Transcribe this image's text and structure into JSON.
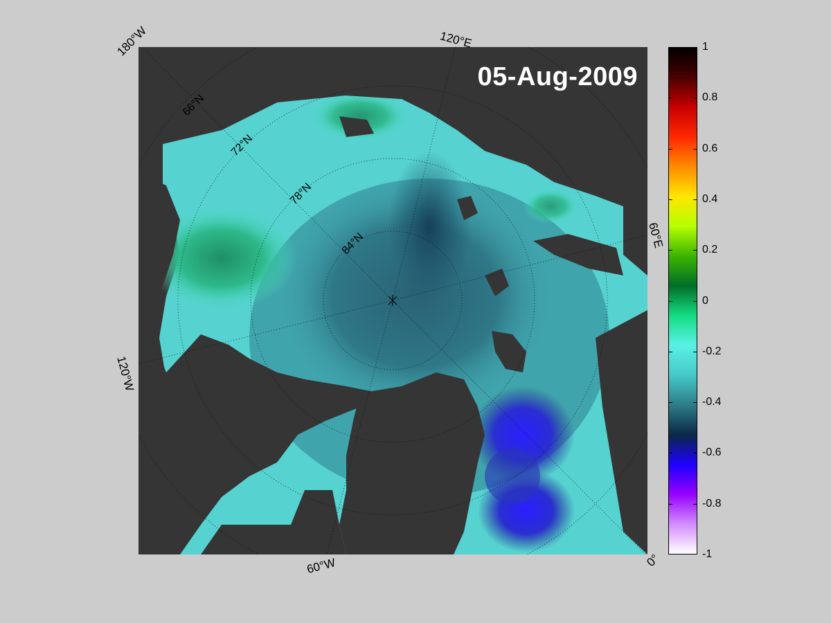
{
  "map": {
    "date": "05-Aug-2009",
    "longitude_labels": [
      "180°W",
      "120°E",
      "60°E",
      "0°",
      "60°W",
      "120°W"
    ],
    "latitude_labels": [
      "66°N",
      "72°N",
      "78°N",
      "84°N"
    ]
  },
  "colorbar": {
    "ticks": [
      "1",
      "0.8",
      "0.6",
      "0.4",
      "0.2",
      "0",
      "-0.2",
      "-0.4",
      "-0.6",
      "-0.8",
      "-1"
    ],
    "colors": [
      "#000000",
      "#4a0000",
      "#c80000",
      "#ff2800",
      "#ff8c00",
      "#ffe600",
      "#b4ff00",
      "#3cb400",
      "#006e28",
      "#14dc82",
      "#5af0e6",
      "#46c8c8",
      "#2d7d87",
      "#0a2846",
      "#1e00ff",
      "#9600ff",
      "#d28cff",
      "#ffffff"
    ]
  }
}
